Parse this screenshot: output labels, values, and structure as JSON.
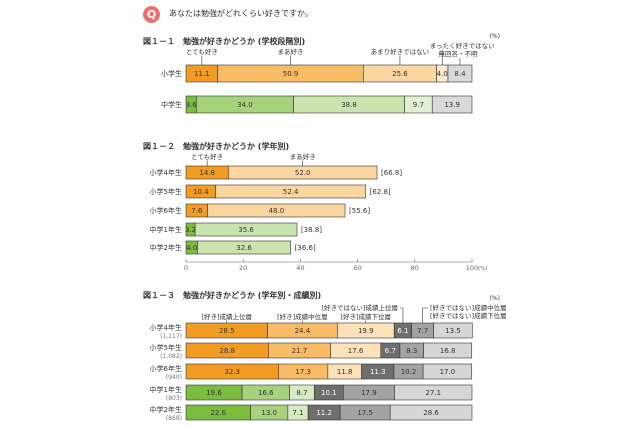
{
  "question": {
    "icon": "Q",
    "text": "あなたは勉強がどれくらい好きですか。"
  },
  "unit": "(%)",
  "chart_data": [
    {
      "type": "bar",
      "stacked": true,
      "orientation": "horizontal",
      "title": "図１－１　勉強が好きかどうか (学校段階別)",
      "segment_labels": [
        "とても好き",
        "まあ好き",
        "あまり好きではない",
        "まったく好きではない",
        "無回答・不明"
      ],
      "categories": [
        "小学生",
        "中学生"
      ],
      "rows": [
        {
          "label": "小学生",
          "values": [
            11.1,
            50.9,
            25.6,
            4.0,
            8.4
          ],
          "colors": [
            "#f39c23",
            "#f8bb66",
            "#fbd6a0",
            "#fde9cf",
            "#d9d9d9"
          ]
        },
        {
          "label": "中学生",
          "values": [
            3.6,
            34.0,
            38.8,
            9.7,
            13.9
          ],
          "colors": [
            "#7cbd3f",
            "#a6d27c",
            "#c9e4ad",
            "#e2f0d3",
            "#d9d9d9"
          ]
        }
      ]
    },
    {
      "type": "bar",
      "stacked": true,
      "orientation": "horizontal",
      "title": "図１－２　勉強が好きかどうか (学年別)",
      "segment_labels": [
        "とても好き",
        "まあ好き"
      ],
      "xlim": [
        0,
        100
      ],
      "ticks": [
        "0",
        "20",
        "40",
        "60",
        "80",
        "100"
      ],
      "tick_suffix": "(%)",
      "rows": [
        {
          "label": "小学4年生",
          "values": [
            14.8,
            52.0
          ],
          "total": "[66.8]",
          "colors": [
            "#f39c23",
            "#fbd6a0"
          ]
        },
        {
          "label": "小学5年生",
          "values": [
            10.4,
            52.4
          ],
          "total": "[62.8]",
          "colors": [
            "#f39c23",
            "#fbd6a0"
          ]
        },
        {
          "label": "小学6年生",
          "values": [
            7.6,
            48.0
          ],
          "total": "[55.6]",
          "colors": [
            "#f39c23",
            "#fbd6a0"
          ]
        },
        {
          "label": "中学1年生",
          "values": [
            3.2,
            35.6
          ],
          "total": "[38.8]",
          "colors": [
            "#7cbd3f",
            "#c9e4ad"
          ]
        },
        {
          "label": "中学2年生",
          "values": [
            4.0,
            32.6
          ],
          "total": "[36.6]",
          "colors": [
            "#7cbd3f",
            "#c9e4ad"
          ]
        }
      ]
    },
    {
      "type": "bar",
      "stacked": true,
      "orientation": "horizontal",
      "title": "図１－３　勉強が好きかどうか (学年別・成績別)",
      "segment_labels": [
        "[好き]成績上位層",
        "[好き]成績中位層",
        "[好き]成績下位層",
        "[好きではない]成績上位層",
        "[好きではない]成績中位層",
        "[好きではない]成績下位層"
      ],
      "rows": [
        {
          "label": "小学4年生",
          "n": "(1,117)",
          "values": [
            28.5,
            24.4,
            19.9,
            6.1,
            7.7,
            13.5
          ],
          "colors": [
            "#f39c23",
            "#f8bb66",
            "#fde1b8",
            "#6e6e6e",
            "#a3a3a3",
            "#d6d6d6"
          ]
        },
        {
          "label": "小学5年生",
          "n": "(1,082)",
          "values": [
            28.8,
            21.7,
            17.6,
            6.7,
            8.3,
            16.8
          ],
          "colors": [
            "#f39c23",
            "#f8bb66",
            "#fde1b8",
            "#6e6e6e",
            "#a3a3a3",
            "#d6d6d6"
          ]
        },
        {
          "label": "小学6年生",
          "n": "(940)",
          "values": [
            32.3,
            17.3,
            11.8,
            11.3,
            10.2,
            17.0
          ],
          "colors": [
            "#f39c23",
            "#f8bb66",
            "#fde1b8",
            "#6e6e6e",
            "#a3a3a3",
            "#d6d6d6"
          ]
        },
        {
          "label": "中学1年生",
          "n": "(803)",
          "values": [
            19.6,
            16.6,
            8.7,
            10.1,
            17.9,
            27.1
          ],
          "colors": [
            "#7cbd3f",
            "#a6d27c",
            "#d6ebc2",
            "#6e6e6e",
            "#a3a3a3",
            "#d6d6d6"
          ]
        },
        {
          "label": "中学2年生",
          "n": "(868)",
          "values": [
            22.6,
            13.0,
            7.1,
            11.2,
            17.5,
            28.6
          ],
          "colors": [
            "#7cbd3f",
            "#a6d27c",
            "#d6ebc2",
            "#6e6e6e",
            "#a3a3a3",
            "#d6d6d6"
          ]
        }
      ]
    }
  ]
}
